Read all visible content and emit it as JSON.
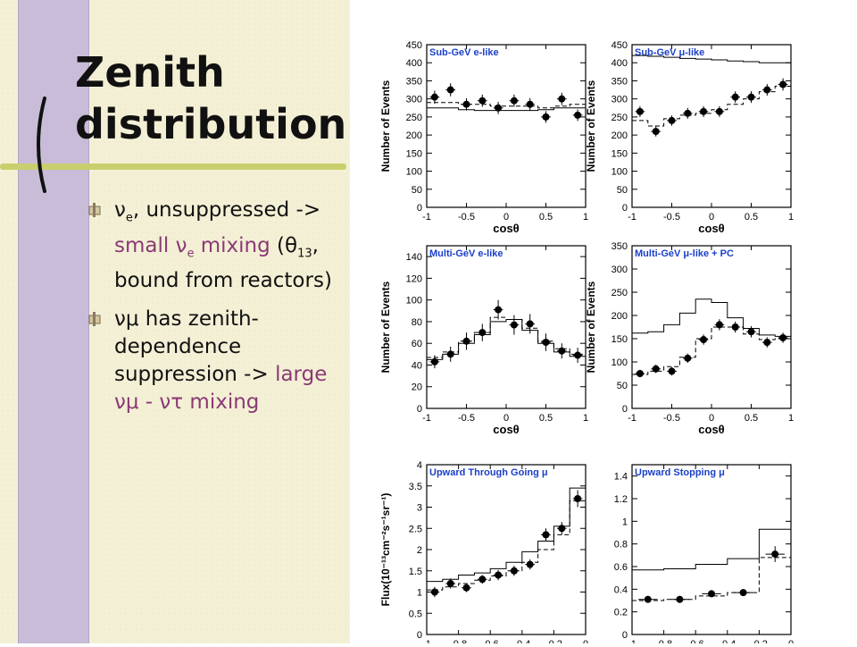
{
  "slide": {
    "title": "Zenith distribution",
    "colors": {
      "background": "#f4f0d6",
      "bar": "#c8bcd8",
      "line": "#c8cf6c",
      "highlight": "#8a3a74"
    },
    "bullets": [
      {
        "icon": "bullet-marker-icon",
        "nu_e": "ν",
        "nu_e_sub": "e",
        "text1": ", unsuppressed -> ",
        "hl1": "small ",
        "hl_nu": "ν",
        "hl_sub": "e",
        "hl2": " mixing",
        "text2": " (",
        "theta": "θ",
        "theta_sub": "13",
        "text3": ", bound from reactors)"
      },
      {
        "icon": "bullet-marker-icon",
        "nu_mu": "νμ",
        "text1": " has zenith-dependence suppression -> ",
        "hl1": "large",
        "hl2": "νμ - ντ mixing"
      }
    ]
  },
  "chart_data": [
    {
      "type": "scatter",
      "title": "Sub-GeV e-like",
      "xlabel": "cosθ",
      "ylabel": "Number of Events",
      "xlim": [
        -1,
        1
      ],
      "ylim": [
        0,
        450
      ],
      "xticks": [
        -1,
        -0.5,
        0,
        0.5,
        1
      ],
      "xtick_labels": [
        "-1",
        "-0.5",
        "0",
        "0.5",
        "1"
      ],
      "yticks": [
        0,
        50,
        100,
        150,
        200,
        250,
        300,
        350,
        400,
        450
      ],
      "ytick_labels": [
        "0",
        "50",
        "100",
        "150",
        "200",
        "250",
        "300",
        "350",
        "400",
        "450"
      ],
      "x": [
        -0.9,
        -0.7,
        -0.5,
        -0.3,
        -0.1,
        0.1,
        0.3,
        0.5,
        0.7,
        0.9
      ],
      "series": [
        {
          "style": "points",
          "values": [
            305,
            325,
            285,
            295,
            275,
            295,
            285,
            250,
            300,
            255
          ],
          "errors": [
            18,
            18,
            17,
            17,
            17,
            17,
            17,
            16,
            17,
            16
          ]
        },
        {
          "style": "solid",
          "values": [
            275,
            275,
            270,
            268,
            268,
            268,
            268,
            270,
            275,
            275
          ]
        },
        {
          "style": "dashed",
          "values": [
            290,
            290,
            285,
            285,
            280,
            280,
            280,
            275,
            280,
            285
          ]
        }
      ]
    },
    {
      "type": "scatter",
      "title": "Sub-GeV μ-like",
      "xlabel": "cosθ",
      "ylabel": "Number of Events",
      "xlim": [
        -1,
        1
      ],
      "ylim": [
        0,
        450
      ],
      "xticks": [
        -1,
        -0.5,
        0,
        0.5,
        1
      ],
      "xtick_labels": [
        "-1",
        "-0.5",
        "0",
        "0.5",
        "1"
      ],
      "yticks": [
        0,
        50,
        100,
        150,
        200,
        250,
        300,
        350,
        400,
        450
      ],
      "ytick_labels": [
        "0",
        "50",
        "100",
        "150",
        "200",
        "250",
        "300",
        "350",
        "400",
        "450"
      ],
      "x": [
        -0.9,
        -0.7,
        -0.5,
        -0.3,
        -0.1,
        0.1,
        0.3,
        0.5,
        0.7,
        0.9
      ],
      "series": [
        {
          "style": "points",
          "values": [
            265,
            210,
            240,
            260,
            265,
            265,
            305,
            305,
            325,
            340
          ],
          "errors": [
            15,
            14,
            14,
            15,
            15,
            15,
            16,
            16,
            16,
            17
          ]
        },
        {
          "style": "solid",
          "values": [
            420,
            418,
            415,
            412,
            410,
            408,
            405,
            403,
            400,
            400
          ]
        },
        {
          "style": "dashed",
          "values": [
            240,
            225,
            245,
            255,
            260,
            270,
            285,
            300,
            320,
            335
          ]
        }
      ]
    },
    {
      "type": "scatter",
      "title": "Multi-GeV e-like",
      "xlabel": "cosθ",
      "ylabel": "Number of Events",
      "xlim": [
        -1,
        1
      ],
      "ylim": [
        0,
        150
      ],
      "xticks": [
        -1,
        -0.5,
        0,
        0.5,
        1
      ],
      "xtick_labels": [
        "-1",
        "-0.5",
        "0",
        "0.5",
        "1"
      ],
      "yticks": [
        0,
        20,
        40,
        60,
        80,
        100,
        120,
        140
      ],
      "ytick_labels": [
        "0",
        "20",
        "40",
        "60",
        "80",
        "100",
        "120",
        "140"
      ],
      "x": [
        -0.9,
        -0.7,
        -0.5,
        -0.3,
        -0.1,
        0.1,
        0.3,
        0.5,
        0.7,
        0.9
      ],
      "series": [
        {
          "style": "points",
          "values": [
            43,
            50,
            62,
            70,
            91,
            77,
            78,
            61,
            53,
            49
          ],
          "errors": [
            6,
            7,
            8,
            8,
            9,
            9,
            9,
            8,
            7,
            7
          ]
        },
        {
          "style": "solid",
          "values": [
            45,
            50,
            60,
            68,
            80,
            82,
            72,
            60,
            52,
            48
          ]
        },
        {
          "style": "dashed",
          "values": [
            47,
            52,
            62,
            70,
            84,
            82,
            74,
            62,
            55,
            50
          ]
        }
      ]
    },
    {
      "type": "scatter",
      "title": "Multi-GeV μ-like + PC",
      "xlabel": "cosθ",
      "ylabel": "Number of Events",
      "xlim": [
        -1,
        1
      ],
      "ylim": [
        0,
        350
      ],
      "xticks": [
        -1,
        -0.5,
        0,
        0.5,
        1
      ],
      "xtick_labels": [
        "-1",
        "-0.5",
        "0",
        "0.5",
        "1"
      ],
      "yticks": [
        0,
        50,
        100,
        150,
        200,
        250,
        300,
        350
      ],
      "ytick_labels": [
        "0",
        "50",
        "100",
        "150",
        "200",
        "250",
        "300",
        "350"
      ],
      "x": [
        -0.9,
        -0.7,
        -0.5,
        -0.3,
        -0.1,
        0.1,
        0.3,
        0.5,
        0.7,
        0.9
      ],
      "series": [
        {
          "style": "points",
          "values": [
            75,
            85,
            80,
            108,
            148,
            180,
            175,
            165,
            142,
            152
          ],
          "errors": [
            8,
            9,
            9,
            10,
            11,
            12,
            12,
            12,
            11,
            11
          ]
        },
        {
          "style": "solid",
          "values": [
            162,
            165,
            180,
            205,
            235,
            228,
            195,
            172,
            158,
            155
          ]
        },
        {
          "style": "dashed",
          "values": [
            73,
            80,
            90,
            110,
            150,
            175,
            175,
            160,
            148,
            150
          ]
        }
      ]
    },
    {
      "type": "scatter",
      "title": "Upward Through Going μ",
      "xlabel": "",
      "ylabel": "Flux(10⁻¹³cm⁻²s⁻¹sr⁻¹)",
      "xlim": [
        -1,
        0
      ],
      "ylim": [
        0,
        4
      ],
      "xticks": [
        -1,
        -0.8,
        -0.6,
        -0.4,
        -0.2,
        0
      ],
      "xtick_labels": [
        "-1",
        "-0.8",
        "-0.6",
        "-0.4",
        "-0.2",
        "0"
      ],
      "yticks": [
        0,
        0.5,
        1,
        1.5,
        2,
        2.5,
        3,
        3.5,
        4
      ],
      "ytick_labels": [
        "0",
        "0.5",
        "1",
        "1.5",
        "2",
        "2.5",
        "3",
        "3.5",
        "4"
      ],
      "x": [
        -0.95,
        -0.85,
        -0.75,
        -0.65,
        -0.55,
        -0.45,
        -0.35,
        -0.25,
        -0.15,
        -0.05
      ],
      "series": [
        {
          "style": "points",
          "values": [
            1.0,
            1.2,
            1.1,
            1.3,
            1.4,
            1.5,
            1.65,
            2.35,
            2.5,
            3.2
          ],
          "errors": [
            0.12,
            0.12,
            0.1,
            0.1,
            0.12,
            0.12,
            0.12,
            0.15,
            0.15,
            0.2
          ]
        },
        {
          "style": "solid",
          "values": [
            1.25,
            1.3,
            1.4,
            1.45,
            1.55,
            1.7,
            1.95,
            2.2,
            2.55,
            3.45
          ]
        },
        {
          "style": "dashed",
          "values": [
            1.05,
            1.12,
            1.2,
            1.28,
            1.38,
            1.5,
            1.7,
            2.0,
            2.35,
            3.15
          ]
        }
      ]
    },
    {
      "type": "scatter",
      "title": "Upward Stopping μ",
      "xlabel": "",
      "ylabel": "",
      "xlim": [
        -1,
        0
      ],
      "ylim": [
        0,
        1.5
      ],
      "xticks": [
        -1,
        -0.8,
        -0.6,
        -0.4,
        -0.2,
        0
      ],
      "xtick_labels": [
        "-1",
        "-0.8",
        "-0.6",
        "-0.4",
        "-0.2",
        "0"
      ],
      "yticks": [
        0,
        0.2,
        0.4,
        0.6,
        0.8,
        1,
        1.2,
        1.4
      ],
      "ytick_labels": [
        "0",
        "0.2",
        "0.4",
        "0.6",
        "0.8",
        "1",
        "1.2",
        "1.4"
      ],
      "x": [
        -0.9,
        -0.7,
        -0.5,
        -0.3,
        -0.1
      ],
      "series": [
        {
          "style": "points",
          "values": [
            0.31,
            0.31,
            0.36,
            0.37,
            0.71
          ],
          "errors": [
            0.03,
            0.03,
            0.03,
            0.03,
            0.07
          ]
        },
        {
          "style": "solid",
          "values": [
            0.57,
            0.58,
            0.62,
            0.67,
            0.93
          ]
        },
        {
          "style": "dashed",
          "values": [
            0.3,
            0.31,
            0.34,
            0.37,
            0.68
          ]
        }
      ]
    }
  ]
}
